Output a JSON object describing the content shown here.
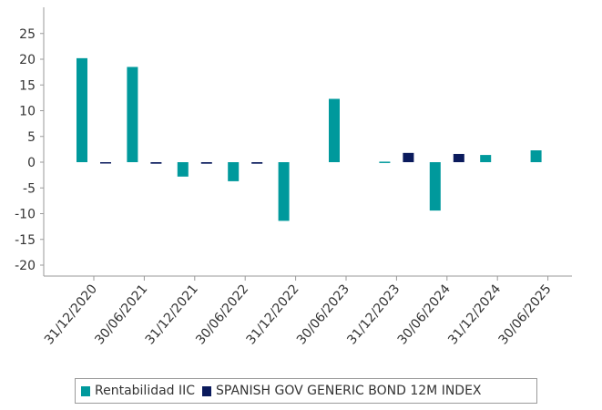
{
  "chart_data": {
    "type": "bar",
    "categories": [
      "31/12/2020",
      "30/06/2021",
      "31/12/2021",
      "30/06/2022",
      "31/12/2022",
      "30/06/2023",
      "31/12/2023",
      "30/06/2024",
      "31/12/2024",
      "30/06/2025"
    ],
    "series": [
      {
        "name": "Rentabilidad IIC",
        "color": "#00999c",
        "values": [
          20.2,
          18.5,
          -2.8,
          -3.7,
          -11.4,
          12.3,
          0.1,
          -9.4,
          1.4,
          2.3
        ]
      },
      {
        "name": "SPANISH GOV GENERIC BOND 12M INDEX",
        "color": "#0a1a5c",
        "values": [
          -0.2,
          -0.3,
          -0.3,
          -0.3,
          0.0,
          0.0,
          1.8,
          1.6,
          0.0,
          0.0
        ]
      }
    ],
    "yticks": [
      "25",
      "20",
      "15",
      "10",
      "5",
      "0",
      "-5",
      "-10",
      "-15",
      "-20"
    ],
    "ylim": [
      -22,
      30
    ],
    "xlabel": "",
    "ylabel": "",
    "grid": false,
    "legend_position": "bottom"
  }
}
